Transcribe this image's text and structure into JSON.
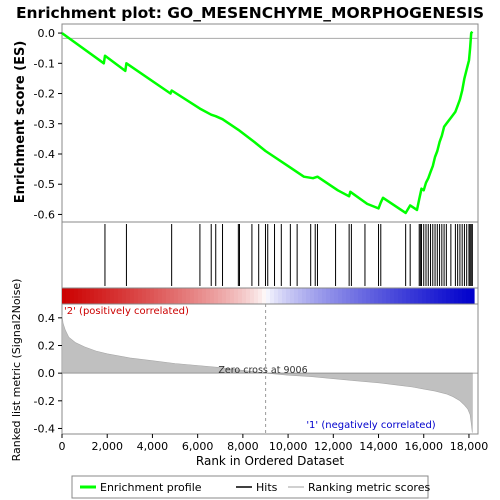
{
  "chart_data": {
    "type": "line",
    "title": "Enrichment plot: GO_MESENCHYME_MORPHOGENESIS",
    "top_panel": {
      "ylabel": "Enrichment score (ES)",
      "y_ticks": [
        "0.0",
        "-0.1",
        "-0.2",
        "-0.3",
        "-0.4",
        "-0.5",
        "-0.6"
      ],
      "ylim": [
        -0.625,
        0.03
      ],
      "series": [
        {
          "name": "Enrichment profile",
          "color": "#00ff00",
          "x": [
            0,
            1850,
            1900,
            2800,
            2850,
            4800,
            4850,
            6100,
            6600,
            6800,
            7100,
            7800,
            8500,
            9000,
            10000,
            10700,
            11100,
            11300,
            12200,
            12700,
            12750,
            13500,
            14000,
            14100,
            14200,
            15200,
            15400,
            15700,
            15800,
            15900,
            16000,
            16100,
            16200,
            16300,
            16400,
            16500,
            16600,
            16700,
            16800,
            16900,
            17000,
            17200,
            17400,
            17500,
            17600,
            17700,
            17800,
            17900,
            18000,
            18050,
            18100,
            18150
          ],
          "y": [
            0.0,
            -0.1,
            -0.075,
            -0.125,
            -0.1,
            -0.2,
            -0.19,
            -0.25,
            -0.27,
            -0.275,
            -0.285,
            -0.32,
            -0.36,
            -0.39,
            -0.44,
            -0.475,
            -0.48,
            -0.475,
            -0.52,
            -0.54,
            -0.525,
            -0.565,
            -0.58,
            -0.56,
            -0.545,
            -0.595,
            -0.57,
            -0.585,
            -0.55,
            -0.515,
            -0.52,
            -0.495,
            -0.48,
            -0.46,
            -0.44,
            -0.41,
            -0.39,
            -0.36,
            -0.34,
            -0.31,
            -0.3,
            -0.28,
            -0.26,
            -0.24,
            -0.22,
            -0.19,
            -0.15,
            -0.12,
            -0.09,
            -0.05,
            0.0,
            0.005
          ]
        }
      ]
    },
    "hits": {
      "name": "Hits",
      "positions": [
        1900,
        2850,
        4850,
        6100,
        6600,
        6800,
        7100,
        7800,
        7850,
        8400,
        8700,
        9000,
        9100,
        9400,
        9700,
        10100,
        10400,
        11000,
        11200,
        11300,
        12100,
        12700,
        12800,
        13400,
        14000,
        14100,
        15200,
        15400,
        15800,
        15850,
        15900,
        16000,
        16100,
        16200,
        16300,
        16400,
        16500,
        16600,
        16700,
        16800,
        16900,
        17000,
        17200,
        17400,
        17500,
        17600,
        17700,
        17800,
        17900,
        18000,
        18050,
        18100,
        18150
      ]
    },
    "ranking": {
      "name": "Ranking metric scores",
      "ylabel": "Ranked list metric (Signal2Noise)",
      "y_ticks": [
        "0.4",
        "0.2",
        "0.0",
        "-0.2",
        "-0.4"
      ],
      "ylim": [
        -0.44,
        0.5
      ],
      "x": [
        0,
        50,
        150,
        300,
        600,
        1000,
        1500,
        2000,
        3000,
        4000,
        5000,
        6000,
        7000,
        8000,
        9006,
        10000,
        11000,
        12000,
        13000,
        14000,
        15000,
        15500,
        16000,
        16500,
        17000,
        17300,
        17600,
        17800,
        17950,
        18050,
        18100,
        18150
      ],
      "values": [
        0.42,
        0.36,
        0.31,
        0.26,
        0.22,
        0.19,
        0.16,
        0.14,
        0.11,
        0.09,
        0.07,
        0.055,
        0.04,
        0.02,
        0.0,
        -0.015,
        -0.025,
        -0.04,
        -0.055,
        -0.07,
        -0.09,
        -0.1,
        -0.115,
        -0.13,
        -0.15,
        -0.17,
        -0.2,
        -0.23,
        -0.26,
        -0.3,
        -0.36,
        -0.43
      ],
      "zero_cross_label": "Zero cross at 9006",
      "zero_cross": 9006,
      "positive_label": "'2' (positively correlated)",
      "negative_label": "'1' (negatively correlated)",
      "positive_color": "#cc0000",
      "negative_color": "#0000cc"
    },
    "xlabel": "Rank in Ordered Dataset",
    "x_ticks": [
      "0",
      "2,000",
      "4,000",
      "6,000",
      "8,000",
      "10,000",
      "12,000",
      "14,000",
      "16,000",
      "18,000"
    ],
    "x_tick_values": [
      0,
      2000,
      4000,
      6000,
      8000,
      10000,
      12000,
      14000,
      16000,
      18000
    ],
    "xlim": [
      0,
      18400
    ],
    "legend": {
      "placement": "bottom",
      "items": [
        {
          "label": "Enrichment profile",
          "color": "#00ff00"
        },
        {
          "label": "Hits",
          "color": "#000000"
        },
        {
          "label": "Ranking metric scores",
          "color": "#c0c0c0"
        }
      ]
    }
  }
}
